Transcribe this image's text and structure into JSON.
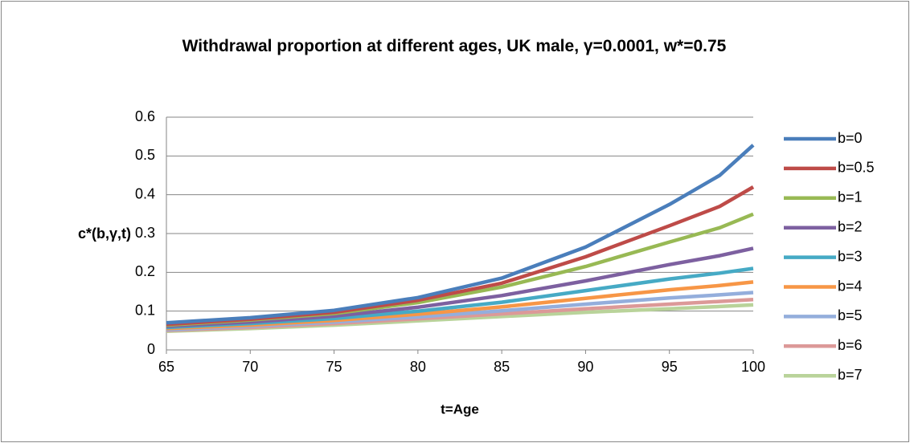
{
  "chart_data": {
    "type": "line",
    "title": "Withdrawal proportion at different ages, UK male, γ=0.0001, w*=0.75",
    "xlabel": "t=Age",
    "ylabel": "c*(b,γ,t)",
    "x": [
      65,
      70,
      75,
      80,
      85,
      90,
      95,
      98,
      100
    ],
    "xlim": [
      65,
      100
    ],
    "xticks": [
      65,
      70,
      75,
      80,
      85,
      90,
      95,
      100
    ],
    "ylim": [
      0,
      0.6
    ],
    "yticks": [
      0,
      0.1,
      0.2,
      0.3,
      0.4,
      0.5,
      0.6
    ],
    "grid": true,
    "legend": "right",
    "series": [
      {
        "name": "b=0",
        "color": "#4a7ebb",
        "values": [
          0.07,
          0.083,
          0.102,
          0.135,
          0.185,
          0.265,
          0.375,
          0.45,
          0.528
        ]
      },
      {
        "name": "b=0.5",
        "color": "#be4b48",
        "values": [
          0.066,
          0.079,
          0.097,
          0.128,
          0.172,
          0.24,
          0.32,
          0.37,
          0.42
        ]
      },
      {
        "name": "b=1",
        "color": "#98b954",
        "values": [
          0.064,
          0.077,
          0.094,
          0.122,
          0.162,
          0.215,
          0.278,
          0.315,
          0.35
        ]
      },
      {
        "name": "b=2",
        "color": "#7d60a0",
        "values": [
          0.061,
          0.072,
          0.087,
          0.11,
          0.14,
          0.178,
          0.22,
          0.243,
          0.262
        ]
      },
      {
        "name": "b=3",
        "color": "#46aac5",
        "values": [
          0.058,
          0.068,
          0.081,
          0.1,
          0.123,
          0.153,
          0.183,
          0.198,
          0.21
        ]
      },
      {
        "name": "b=4",
        "color": "#f79646",
        "values": [
          0.055,
          0.064,
          0.076,
          0.092,
          0.111,
          0.133,
          0.155,
          0.166,
          0.175
        ]
      },
      {
        "name": "b=5",
        "color": "#94aedc",
        "values": [
          0.052,
          0.061,
          0.072,
          0.085,
          0.101,
          0.118,
          0.134,
          0.142,
          0.148
        ]
      },
      {
        "name": "b=6",
        "color": "#dc9998",
        "values": [
          0.05,
          0.058,
          0.068,
          0.08,
          0.093,
          0.106,
          0.118,
          0.125,
          0.13
        ]
      },
      {
        "name": "b=7",
        "color": "#b9d39a",
        "values": [
          0.048,
          0.055,
          0.064,
          0.075,
          0.086,
          0.097,
          0.106,
          0.112,
          0.116
        ]
      }
    ]
  }
}
